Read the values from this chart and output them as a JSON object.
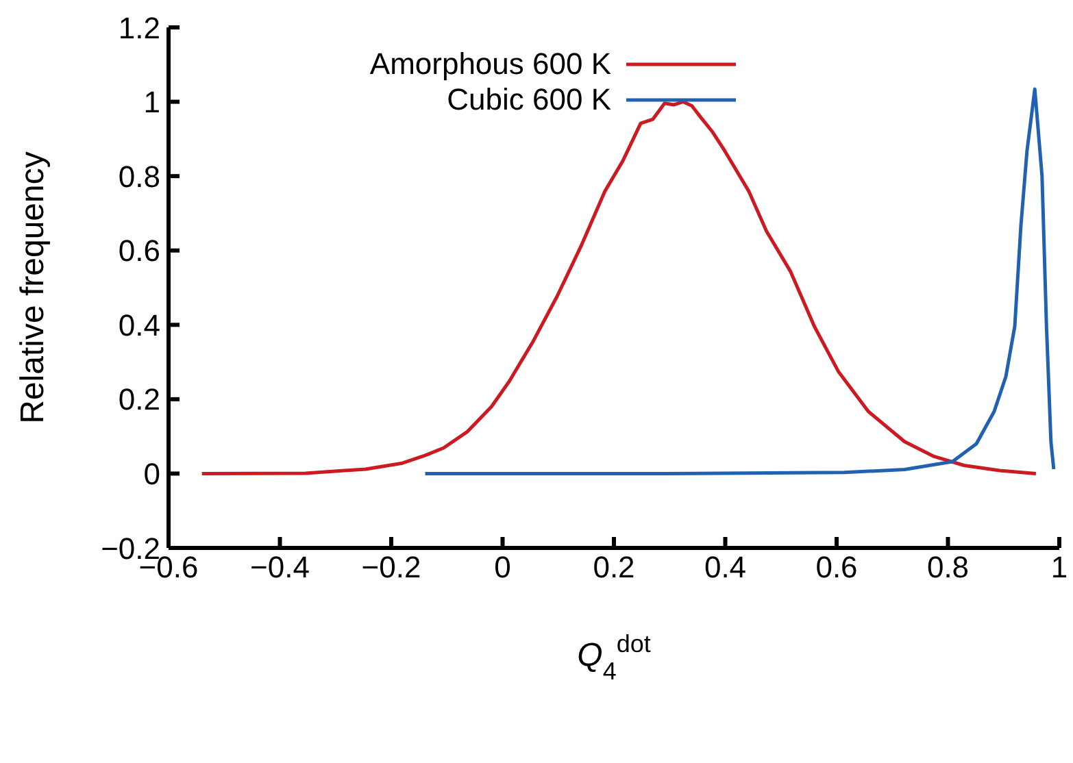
{
  "chart_data": {
    "type": "line",
    "xlabel": "Q$_{4}$$^{dot}$",
    "ylabel": "Relative frequency",
    "xlim": [
      -0.6,
      1
    ],
    "xticks": [
      -0.6,
      -0.4,
      -0.2,
      0,
      0.2,
      0.4,
      0.6,
      0.8,
      1
    ],
    "ylim": [
      -0.2,
      1.2
    ],
    "yticks": [
      -0.2,
      0,
      0.2,
      0.4,
      0.6,
      0.8,
      1,
      1.2
    ],
    "grid": false,
    "legend": "top left",
    "marker": "none",
    "line_style": "solid",
    "series": [
      {
        "name": "Amorphous 600 K",
        "color": "#cc1a22",
        "x": [
          -0.54,
          -0.354,
          -0.246,
          -0.18,
          -0.139,
          -0.106,
          -0.063,
          -0.02,
          0.012,
          0.055,
          0.098,
          0.141,
          0.184,
          0.216,
          0.248,
          0.27,
          0.291,
          0.308,
          0.324,
          0.34,
          0.356,
          0.377,
          0.399,
          0.442,
          0.474,
          0.517,
          0.56,
          0.603,
          0.657,
          0.722,
          0.775,
          0.829,
          0.893,
          0.958
        ],
        "values": [
          0,
          0.001,
          0.012,
          0.028,
          0.049,
          0.069,
          0.113,
          0.18,
          0.248,
          0.356,
          0.477,
          0.612,
          0.76,
          0.841,
          0.942,
          0.953,
          0.996,
          0.992,
          1.0,
          0.989,
          0.958,
          0.919,
          0.868,
          0.76,
          0.652,
          0.544,
          0.396,
          0.275,
          0.167,
          0.086,
          0.046,
          0.022,
          0.008,
          0
        ]
      },
      {
        "name": "Cubic 600 K",
        "color": "#2062b0",
        "x": [
          -0.139,
          0.291,
          0.614,
          0.722,
          0.808,
          0.851,
          0.883,
          0.904,
          0.92,
          0.931,
          0.942,
          0.956,
          0.969,
          0.977,
          0.985,
          0.99
        ],
        "values": [
          0,
          0,
          0.003,
          0.011,
          0.032,
          0.08,
          0.167,
          0.261,
          0.396,
          0.666,
          0.868,
          1.034,
          0.8,
          0.396,
          0.086,
          0.012
        ]
      }
    ]
  }
}
